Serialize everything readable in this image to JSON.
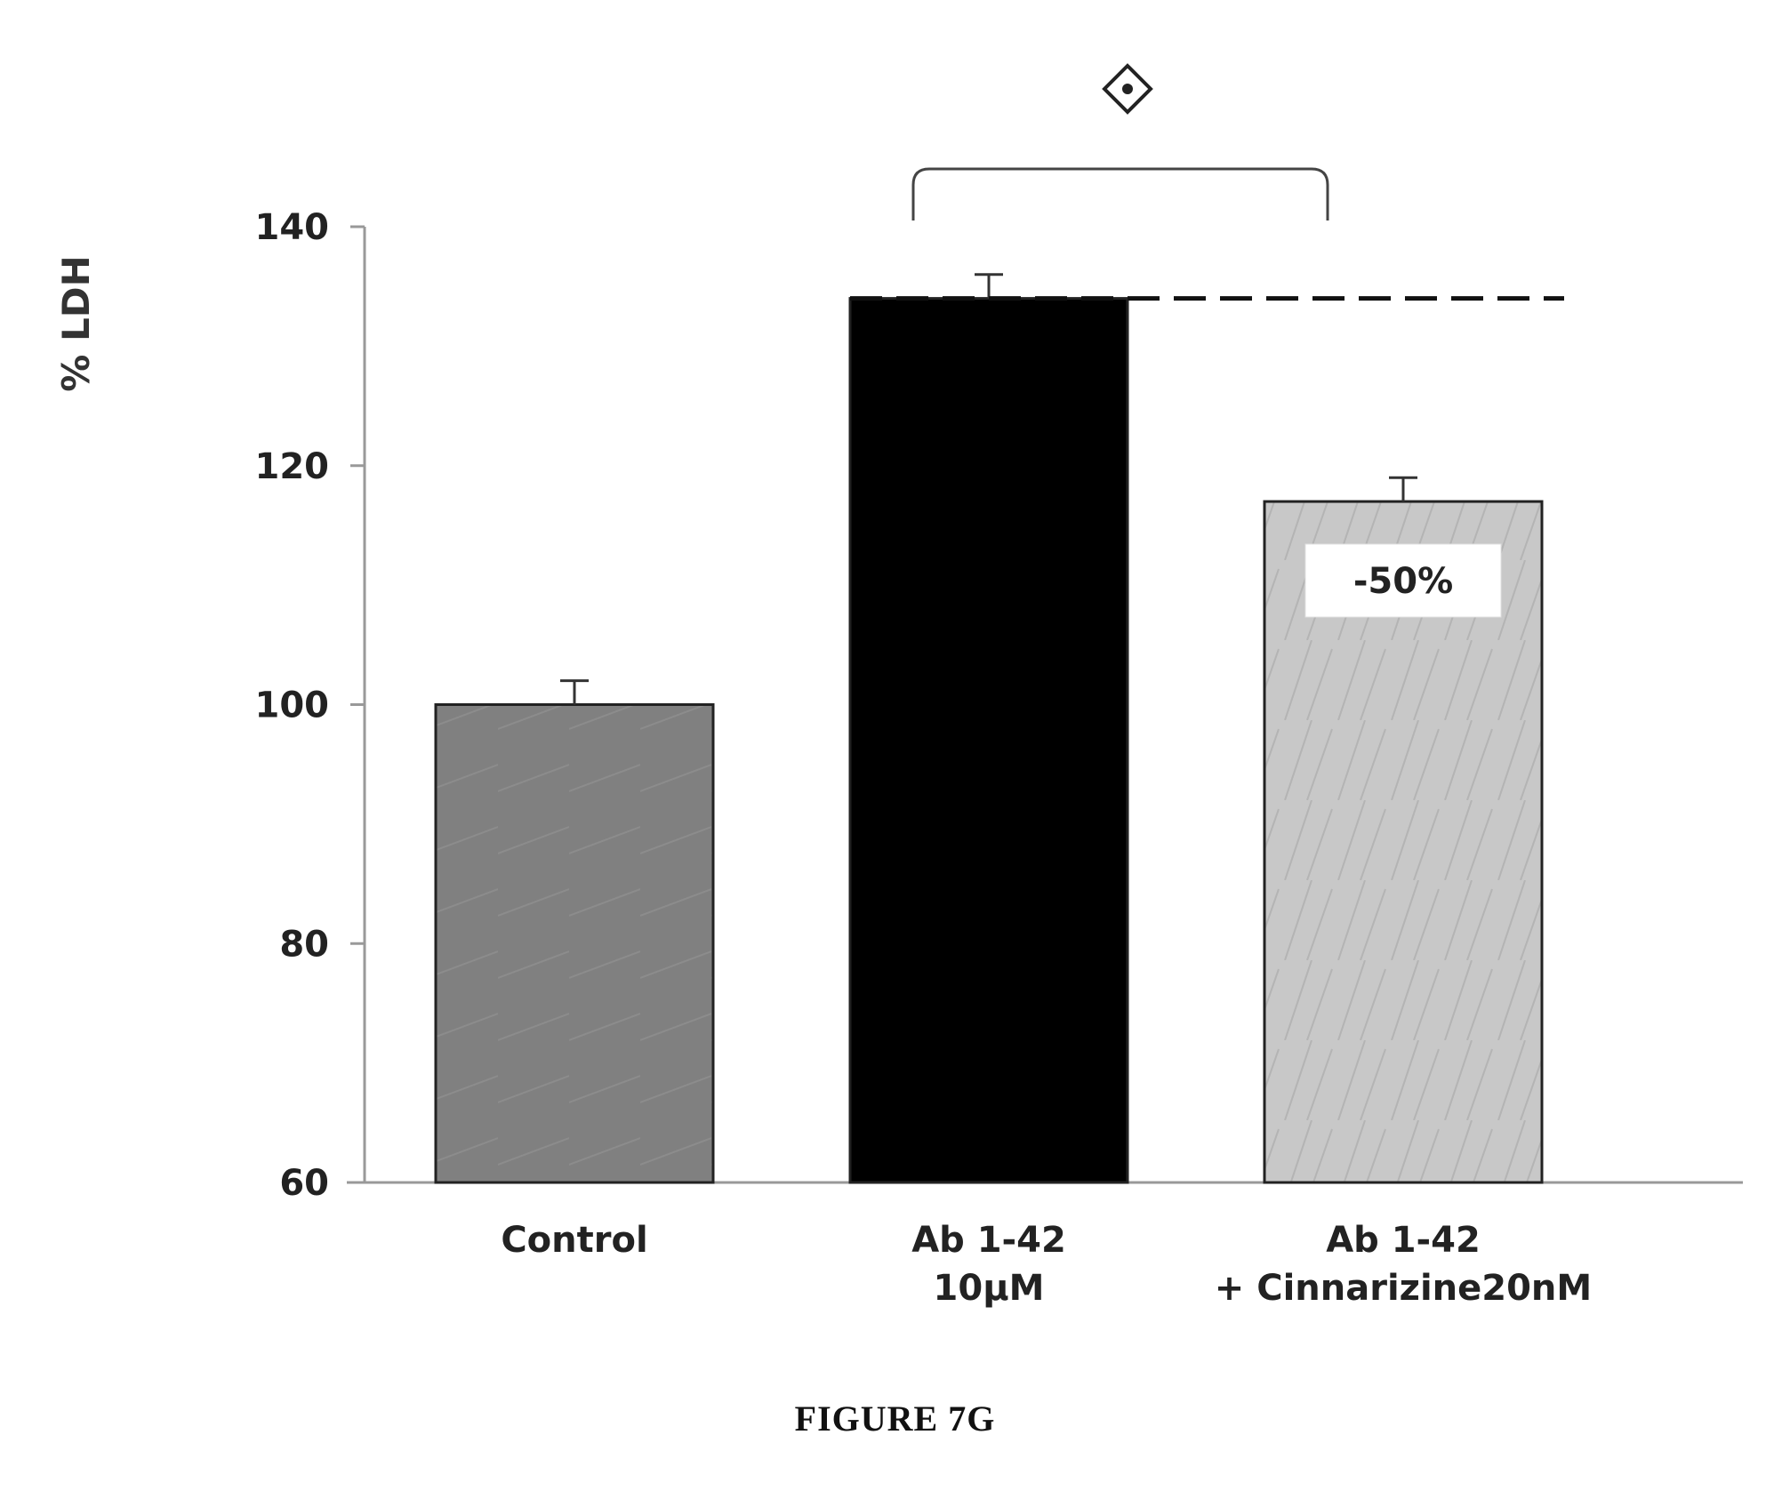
{
  "chart_data": {
    "type": "bar",
    "categories": [
      [
        "Control"
      ],
      [
        "Ab 1-42",
        "10µM"
      ],
      [
        "Ab 1-42",
        "+ Cinnarizine20nM"
      ]
    ],
    "values": [
      100,
      134,
      117
    ],
    "errors": [
      2,
      2,
      2
    ],
    "bar_colors": [
      "#808080",
      "#000000",
      "#c8c8c8"
    ],
    "ylabel": "% LDH",
    "ylim": [
      60,
      140
    ],
    "yticks": [
      60,
      80,
      100,
      120,
      140
    ],
    "reference_line_value": 134,
    "bar_annotation": {
      "bar_index": 2,
      "text": "-50%"
    },
    "significance": {
      "between": [
        1,
        2
      ],
      "symbol": "◈"
    }
  },
  "caption": "FIGURE 7G"
}
